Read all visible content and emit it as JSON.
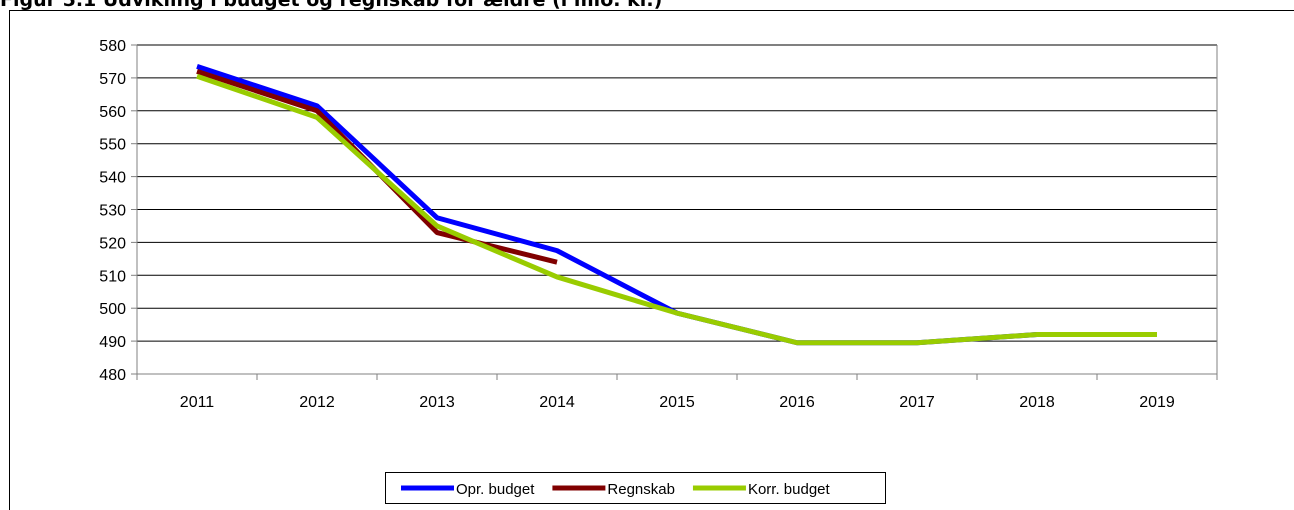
{
  "chart_data": {
    "type": "line",
    "title": "Figur 5.1 Udvikling i budget og regnskab for ældre (i mio. kr.)",
    "categories": [
      "2011",
      "2012",
      "2013",
      "2014",
      "2015",
      "2016",
      "2017",
      "2018",
      "2019"
    ],
    "series": [
      {
        "name": "Opr. budget",
        "color": "#0000ff",
        "values": [
          573.5,
          561.5,
          527.5,
          517.5,
          498.5,
          489.5,
          489.5,
          492,
          492
        ]
      },
      {
        "name": "Regnskab",
        "color": "#800000",
        "values": [
          572,
          560,
          523,
          514,
          null,
          null,
          null,
          null,
          null
        ]
      },
      {
        "name": "Korr. budget",
        "color": "#99cc00",
        "values": [
          570.5,
          558,
          525,
          509.5,
          498.5,
          489.5,
          489.5,
          492,
          492
        ]
      }
    ],
    "ylim": [
      480,
      580
    ],
    "yticks": [
      480,
      490,
      500,
      510,
      520,
      530,
      540,
      550,
      560,
      570,
      580
    ],
    "grid": true,
    "legend": "bottom"
  }
}
